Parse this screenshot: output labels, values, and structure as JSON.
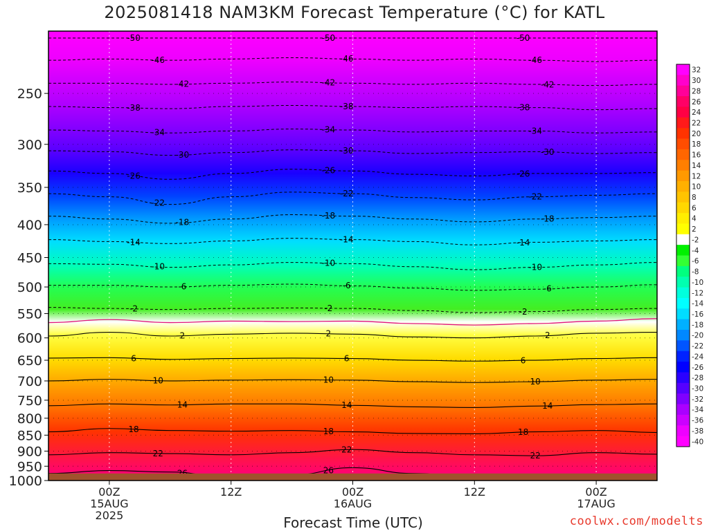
{
  "title": "2025081418 NAM3KM Forecast Temperature (°C) for KATL",
  "xlabel": "Forecast Time (UTC)",
  "credit": "coolwx.com/modelts",
  "chart_data": {
    "type": "heatmap",
    "subtype": "time-height temperature cross section",
    "y_axis": {
      "quantity": "pressure (hPa)",
      "scale": "log",
      "reversed": true,
      "range": [
        1000,
        200
      ],
      "ticks": [
        250,
        300,
        350,
        400,
        450,
        500,
        550,
        600,
        650,
        700,
        750,
        800,
        850,
        900,
        950,
        1000
      ]
    },
    "x_axis": {
      "quantity": "forecast time (UTC)",
      "range": [
        "2025-08-14T18Z",
        "2025-08-17T06Z"
      ],
      "ticks": [
        {
          "time": "2025-08-15T00Z",
          "lines": [
            "00Z",
            "15AUG",
            "2025"
          ]
        },
        {
          "time": "2025-08-15T12Z",
          "lines": [
            "12Z"
          ]
        },
        {
          "time": "2025-08-16T00Z",
          "lines": [
            "00Z",
            "16AUG"
          ]
        },
        {
          "time": "2025-08-16T12Z",
          "lines": [
            "12Z"
          ]
        },
        {
          "time": "2025-08-17T00Z",
          "lines": [
            "00Z",
            "17AUG"
          ]
        }
      ]
    },
    "colorbar": {
      "labels": [
        32,
        30,
        28,
        26,
        24,
        22,
        20,
        18,
        16,
        14,
        12,
        10,
        8,
        6,
        4,
        2,
        -2,
        -4,
        -6,
        -8,
        -10,
        -12,
        -14,
        -16,
        -18,
        -20,
        -22,
        -24,
        -26,
        -28,
        -30,
        -32,
        -34,
        -36,
        -38,
        -40
      ],
      "colors": [
        "#ff00ff",
        "#ff00cc",
        "#ff0099",
        "#ff0066",
        "#ff0044",
        "#ff1a1a",
        "#ff3300",
        "#ff4d00",
        "#ff6600",
        "#ff7f00",
        "#ff9900",
        "#ffb000",
        "#ffc400",
        "#ffd800",
        "#ffee00",
        "#ffff00",
        "#ffffff",
        "#00f000",
        "#33ff33",
        "#00ff7f",
        "#00ffb0",
        "#00ffdd",
        "#00ffff",
        "#00ddff",
        "#00b0ff",
        "#0088ff",
        "#0055ff",
        "#0022ff",
        "#0000ff",
        "#2a00ff",
        "#5500ff",
        "#7f00ff",
        "#aa00ff",
        "#cc00ff",
        "#ee00ff",
        "#ff00ff"
      ]
    },
    "contours": [
      {
        "value": -50,
        "pressures": [
          205,
          205,
          205,
          205,
          205,
          205,
          205,
          205,
          205,
          205,
          205
        ]
      },
      {
        "value": -46,
        "pressures": [
          222,
          221,
          222,
          221,
          220,
          221,
          222,
          221,
          222,
          223,
          222
        ]
      },
      {
        "value": -42,
        "pressures": [
          241,
          241,
          242,
          241,
          240,
          241,
          242,
          241,
          242,
          243,
          242
        ]
      },
      {
        "value": -38,
        "pressures": [
          262,
          263,
          264,
          262,
          261,
          262,
          263,
          262,
          263,
          265,
          264
        ]
      },
      {
        "value": -34,
        "pressures": [
          285,
          286,
          288,
          286,
          284,
          285,
          287,
          286,
          286,
          288,
          287
        ]
      },
      {
        "value": -30,
        "pressures": [
          307,
          308,
          312,
          309,
          306,
          307,
          310,
          309,
          308,
          310,
          309
        ]
      },
      {
        "value": -26,
        "pressures": [
          330,
          333,
          340,
          333,
          328,
          330,
          334,
          336,
          333,
          333,
          332
        ]
      },
      {
        "value": -22,
        "pressures": [
          358,
          362,
          372,
          362,
          356,
          358,
          363,
          366,
          362,
          360,
          358
        ]
      },
      {
        "value": -18,
        "pressures": [
          388,
          392,
          398,
          392,
          386,
          388,
          392,
          396,
          392,
          390,
          388
        ]
      },
      {
        "value": -14,
        "pressures": [
          422,
          425,
          428,
          424,
          420,
          422,
          425,
          430,
          426,
          424,
          422
        ]
      },
      {
        "value": -10,
        "pressures": [
          460,
          461,
          466,
          462,
          458,
          460,
          465,
          470,
          466,
          462,
          458
        ]
      },
      {
        "value": -6,
        "pressures": [
          497,
          497,
          500,
          497,
          495,
          498,
          502,
          506,
          504,
          500,
          496
        ]
      },
      {
        "value": -2,
        "pressures": [
          538,
          540,
          542,
          540,
          539,
          540,
          544,
          548,
          546,
          542,
          540
        ]
      },
      {
        "value": 0,
        "pressures": [
          568,
          562,
          568,
          565,
          566,
          565,
          570,
          573,
          570,
          565,
          560
        ]
      },
      {
        "value": 2,
        "pressures": [
          596,
          588,
          596,
          592,
          590,
          592,
          598,
          600,
          596,
          590,
          588
        ]
      },
      {
        "value": 6,
        "pressures": [
          645,
          644,
          648,
          646,
          645,
          646,
          650,
          652,
          650,
          646,
          644
        ]
      },
      {
        "value": 10,
        "pressures": [
          700,
          696,
          700,
          698,
          697,
          698,
          702,
          704,
          702,
          698,
          696
        ]
      },
      {
        "value": 14,
        "pressures": [
          765,
          760,
          763,
          760,
          760,
          764,
          768,
          770,
          766,
          762,
          760
        ]
      },
      {
        "value": 18,
        "pressures": [
          840,
          830,
          836,
          838,
          836,
          840,
          845,
          846,
          840,
          836,
          842
        ]
      },
      {
        "value": 22,
        "pressures": [
          912,
          905,
          908,
          912,
          905,
          895,
          905,
          912,
          915,
          905,
          910
        ]
      },
      {
        "value": 26,
        "pressures": [
          975,
          965,
          970,
          990,
          980,
          955,
          975,
          990,
          1000,
          985,
          1000
        ]
      }
    ],
    "contour_label_values": [
      -50,
      -46,
      -42,
      -38,
      -34,
      -30,
      -26,
      -22,
      -18,
      -14,
      -10,
      -6,
      -2,
      2,
      6,
      10,
      14,
      18,
      22,
      26
    ],
    "surface_pressure": 975
  }
}
